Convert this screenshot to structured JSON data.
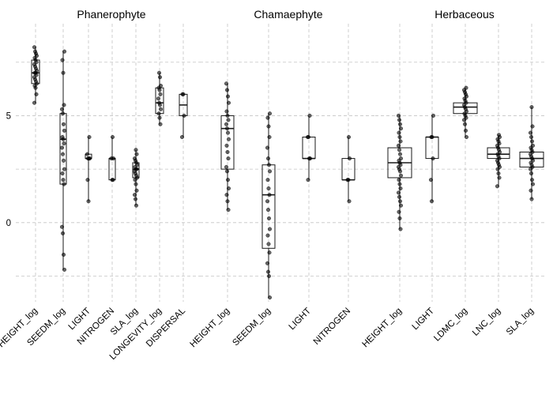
{
  "chart_data": {
    "type": "box",
    "y_axis": {
      "ticks": [
        0,
        5
      ],
      "ylim": [
        -3.7,
        9.3
      ],
      "grid_values": [
        -2.5,
        0,
        2.5,
        5,
        7.5
      ]
    },
    "grid": true,
    "panels": [
      {
        "title": "Phanerophyte",
        "variables": [
          {
            "label": "HEIGHT_log",
            "min": 5.6,
            "q1": 6.5,
            "median": 7.0,
            "q3": 7.6,
            "max": 8.2,
            "points": [
              8.2,
              8.0,
              7.9,
              7.8,
              7.7,
              7.6,
              7.5,
              7.4,
              7.3,
              7.2,
              7.1,
              7.0,
              7.0,
              6.9,
              6.8,
              6.7,
              6.6,
              6.5,
              6.4,
              6.3,
              6.0,
              5.6
            ]
          },
          {
            "label": "SEEDM_log",
            "min": -2.2,
            "q1": 1.8,
            "median": 3.9,
            "q3": 5.1,
            "max": 8.0,
            "points": [
              8.0,
              7.6,
              7.0,
              5.5,
              5.3,
              5.1,
              4.6,
              4.3,
              4.0,
              3.9,
              3.7,
              3.5,
              3.2,
              2.9,
              2.5,
              2.3,
              2.0,
              1.8,
              -0.2,
              -0.5,
              -1.5,
              -2.2
            ]
          },
          {
            "label": "LIGHT",
            "min": 1.0,
            "q1": 3.0,
            "median": 3.0,
            "q3": 3.2,
            "max": 4.0,
            "points": [
              4.0,
              3.2,
              3.0,
              3.0,
              3.0,
              2.0,
              1.0
            ]
          },
          {
            "label": "NITROGEN",
            "min": 2.0,
            "q1": 2.0,
            "median": 3.0,
            "q3": 3.0,
            "max": 4.0,
            "points": [
              4.0,
              3.0,
              3.0,
              2.0,
              2.0
            ]
          },
          {
            "label": "SLA_log",
            "min": 0.8,
            "q1": 2.1,
            "median": 2.5,
            "q3": 2.8,
            "max": 3.4,
            "points": [
              3.4,
              3.2,
              3.0,
              2.9,
              2.8,
              2.7,
              2.6,
              2.5,
              2.5,
              2.4,
              2.3,
              2.2,
              2.1,
              2.0,
              1.8,
              1.5,
              1.3,
              1.1,
              0.8
            ]
          },
          {
            "label": "LONGEVITY_log",
            "min": 4.6,
            "q1": 5.1,
            "median": 5.6,
            "q3": 6.3,
            "max": 7.0,
            "points": [
              7.0,
              6.8,
              6.4,
              6.3,
              6.2,
              6.0,
              5.8,
              5.6,
              5.5,
              5.3,
              5.1,
              4.9,
              4.6
            ]
          },
          {
            "label": "DISPERSAL",
            "min": 4.0,
            "q1": 5.0,
            "median": 5.5,
            "q3": 6.0,
            "max": 6.0,
            "points": [
              6.0,
              6.0,
              5.0,
              4.0
            ]
          }
        ]
      },
      {
        "title": "Chamaephyte",
        "variables": [
          {
            "label": "HEIGHT_log",
            "min": 0.6,
            "q1": 2.5,
            "median": 4.4,
            "q3": 5.0,
            "max": 6.5,
            "points": [
              6.5,
              6.2,
              5.9,
              5.6,
              5.2,
              5.0,
              4.8,
              4.6,
              4.4,
              4.2,
              3.9,
              3.6,
              3.3,
              3.0,
              2.6,
              2.4,
              2.0,
              1.6,
              1.3,
              1.0,
              0.6
            ]
          },
          {
            "label": "SEEDM_log",
            "min": -3.5,
            "q1": -1.2,
            "median": 1.3,
            "q3": 2.7,
            "max": 5.1,
            "points": [
              5.1,
              4.9,
              4.5,
              4.0,
              3.5,
              3.0,
              2.7,
              2.4,
              2.0,
              1.6,
              1.3,
              1.0,
              0.6,
              0.2,
              -0.3,
              -0.6,
              -1.0,
              -1.4,
              -1.9,
              -2.3,
              -2.5,
              -3.5
            ]
          },
          {
            "label": "LIGHT",
            "min": 2.0,
            "q1": 3.0,
            "median": 3.0,
            "q3": 4.0,
            "max": 5.0,
            "points": [
              5.0,
              4.0,
              4.0,
              3.0,
              3.0,
              2.0
            ]
          },
          {
            "label": "NITROGEN",
            "min": 1.0,
            "q1": 2.0,
            "median": 2.0,
            "q3": 3.0,
            "max": 4.0,
            "points": [
              4.0,
              3.0,
              2.0,
              2.0,
              1.0
            ]
          }
        ]
      },
      {
        "title": "Herbaceous",
        "variables": [
          {
            "label": "HEIGHT_log",
            "min": -0.3,
            "q1": 2.1,
            "median": 2.8,
            "q3": 3.5,
            "max": 5.0,
            "points": [
              5.0,
              4.8,
              4.6,
              4.4,
              4.2,
              4.0,
              3.8,
              3.6,
              3.4,
              3.2,
              3.0,
              2.9,
              2.8,
              2.7,
              2.6,
              2.5,
              2.4,
              2.2,
              2.0,
              1.8,
              1.6,
              1.4,
              1.2,
              1.0,
              0.8,
              0.5,
              0.2,
              -0.3
            ]
          },
          {
            "label": "LIGHT",
            "min": 1.0,
            "q1": 3.0,
            "median": 4.0,
            "q3": 4.0,
            "max": 5.0,
            "points": [
              5.0,
              4.0,
              4.0,
              3.0,
              2.0,
              1.0
            ]
          },
          {
            "label": "LDMC_log",
            "min": 4.0,
            "q1": 5.1,
            "median": 5.4,
            "q3": 5.6,
            "max": 6.3,
            "points": [
              6.3,
              6.2,
              6.1,
              6.0,
              5.9,
              5.8,
              5.7,
              5.6,
              5.5,
              5.4,
              5.3,
              5.2,
              5.1,
              5.0,
              4.9,
              4.8,
              4.6,
              4.3,
              4.0
            ]
          },
          {
            "label": "LNC_log",
            "min": 1.7,
            "q1": 3.0,
            "median": 3.2,
            "q3": 3.5,
            "max": 4.1,
            "points": [
              4.1,
              4.0,
              3.9,
              3.8,
              3.7,
              3.6,
              3.5,
              3.4,
              3.3,
              3.2,
              3.1,
              3.0,
              2.9,
              2.8,
              2.7,
              2.6,
              2.5,
              2.3,
              2.1,
              1.7
            ]
          },
          {
            "label": "SLA_log",
            "min": 1.1,
            "q1": 2.6,
            "median": 3.0,
            "q3": 3.3,
            "max": 5.4,
            "points": [
              5.4,
              4.5,
              4.2,
              4.0,
              3.8,
              3.6,
              3.5,
              3.4,
              3.3,
              3.2,
              3.1,
              3.0,
              2.9,
              2.8,
              2.7,
              2.6,
              2.5,
              2.3,
              2.0,
              1.8,
              1.5,
              1.1
            ]
          }
        ]
      }
    ]
  }
}
